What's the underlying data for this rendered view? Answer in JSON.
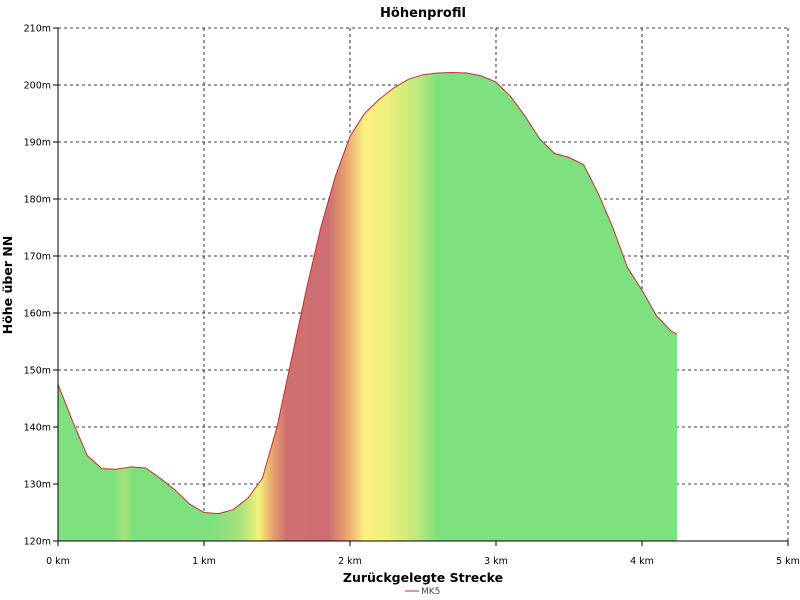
{
  "chart_data": {
    "type": "area",
    "title": "Höhenprofil",
    "xlabel": "Zurückgelegte Strecke",
    "ylabel": "Höhe über NN",
    "xlim": [
      0,
      5
    ],
    "ylim": [
      120,
      210
    ],
    "x_ticks": [
      0,
      1,
      2,
      3,
      4,
      5
    ],
    "x_tick_labels": [
      "0 km",
      "1 km",
      "2 km",
      "3 km",
      "4 km",
      "5 km"
    ],
    "y_ticks": [
      120,
      130,
      140,
      150,
      160,
      170,
      180,
      190,
      200,
      210
    ],
    "y_tick_labels": [
      "120m",
      "130m",
      "140m",
      "150m",
      "160m",
      "170m",
      "180m",
      "190m",
      "200m",
      "210m"
    ],
    "grid": true,
    "legend_position": "bottom-center",
    "series": [
      {
        "name": "MK5",
        "line_color": "#c0302f",
        "x": [
          0.0,
          0.1,
          0.2,
          0.3,
          0.4,
          0.5,
          0.6,
          0.7,
          0.8,
          0.9,
          1.0,
          1.1,
          1.2,
          1.3,
          1.4,
          1.5,
          1.6,
          1.7,
          1.8,
          1.9,
          2.0,
          2.1,
          2.2,
          2.3,
          2.4,
          2.5,
          2.6,
          2.7,
          2.8,
          2.9,
          3.0,
          3.1,
          3.2,
          3.3,
          3.4,
          3.5,
          3.6,
          3.7,
          3.8,
          3.9,
          4.0,
          4.1,
          4.2,
          4.24
        ],
        "values": [
          147.5,
          141.0,
          135.0,
          132.7,
          132.6,
          133.0,
          132.8,
          131.0,
          129.0,
          126.5,
          125.0,
          124.8,
          125.5,
          127.5,
          131.0,
          140.0,
          152.0,
          164.0,
          175.0,
          184.0,
          191.0,
          195.0,
          197.5,
          199.5,
          201.0,
          201.8,
          202.1,
          202.2,
          202.1,
          201.6,
          200.5,
          198.0,
          194.5,
          190.5,
          188.0,
          187.3,
          186.0,
          181.0,
          175.0,
          168.0,
          164.0,
          159.5,
          156.8,
          156.3
        ]
      }
    ],
    "fill_gradient_stops": [
      {
        "x": 0.0,
        "color": "#7fe07f"
      },
      {
        "x": 0.38,
        "color": "#7fe07f"
      },
      {
        "x": 0.45,
        "color": "#a6e27a"
      },
      {
        "x": 0.52,
        "color": "#7fe07f"
      },
      {
        "x": 1.05,
        "color": "#7fe07f"
      },
      {
        "x": 1.25,
        "color": "#a9e27a"
      },
      {
        "x": 1.38,
        "color": "#f5f07c"
      },
      {
        "x": 1.47,
        "color": "#e6a36e"
      },
      {
        "x": 1.56,
        "color": "#cf7070"
      },
      {
        "x": 1.85,
        "color": "#cc6e72"
      },
      {
        "x": 1.97,
        "color": "#e8a06e"
      },
      {
        "x": 2.1,
        "color": "#fbf181"
      },
      {
        "x": 2.25,
        "color": "#eff07f"
      },
      {
        "x": 2.45,
        "color": "#c3ea7c"
      },
      {
        "x": 2.6,
        "color": "#7fe07f"
      },
      {
        "x": 4.24,
        "color": "#7fe07f"
      }
    ]
  }
}
